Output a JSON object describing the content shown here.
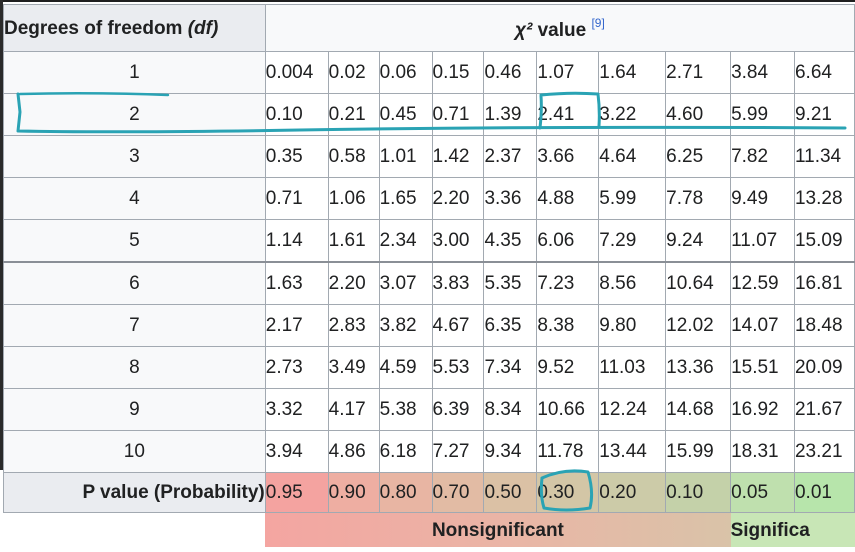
{
  "header": {
    "df_label": "Degrees of freedom",
    "df_abbrev": "(df)",
    "chi_symbol": "χ²",
    "chi_label": "value",
    "chi_ref": "[9]"
  },
  "rows": [
    {
      "df": "1",
      "values": [
        "0.004",
        "0.02",
        "0.06",
        "0.15",
        "0.46",
        "1.07",
        "1.64",
        "2.71",
        "3.84",
        "6.64"
      ]
    },
    {
      "df": "2",
      "values": [
        "0.10",
        "0.21",
        "0.45",
        "0.71",
        "1.39",
        "2.41",
        "3.22",
        "4.60",
        "5.99",
        "9.21"
      ]
    },
    {
      "df": "3",
      "values": [
        "0.35",
        "0.58",
        "1.01",
        "1.42",
        "2.37",
        "3.66",
        "4.64",
        "6.25",
        "7.82",
        "11.34"
      ]
    },
    {
      "df": "4",
      "values": [
        "0.71",
        "1.06",
        "1.65",
        "2.20",
        "3.36",
        "4.88",
        "5.99",
        "7.78",
        "9.49",
        "13.28"
      ]
    },
    {
      "df": "5",
      "values": [
        "1.14",
        "1.61",
        "2.34",
        "3.00",
        "4.35",
        "6.06",
        "7.29",
        "9.24",
        "11.07",
        "15.09"
      ]
    },
    {
      "df": "6",
      "values": [
        "1.63",
        "2.20",
        "3.07",
        "3.83",
        "5.35",
        "7.23",
        "8.56",
        "10.64",
        "12.59",
        "16.81"
      ]
    },
    {
      "df": "7",
      "values": [
        "2.17",
        "2.83",
        "3.82",
        "4.67",
        "6.35",
        "8.38",
        "9.80",
        "12.02",
        "14.07",
        "18.48"
      ]
    },
    {
      "df": "8",
      "values": [
        "2.73",
        "3.49",
        "4.59",
        "5.53",
        "7.34",
        "9.52",
        "11.03",
        "13.36",
        "15.51",
        "20.09"
      ]
    },
    {
      "df": "9",
      "values": [
        "3.32",
        "4.17",
        "5.38",
        "6.39",
        "8.34",
        "10.66",
        "12.24",
        "14.68",
        "16.92",
        "21.67"
      ]
    },
    {
      "df": "10",
      "values": [
        "3.94",
        "4.86",
        "6.18",
        "7.27",
        "9.34",
        "11.78",
        "13.44",
        "15.99",
        "18.31",
        "23.21"
      ]
    }
  ],
  "p_values": {
    "label": "P value (Probability)",
    "values": [
      "0.95",
      "0.90",
      "0.80",
      "0.70",
      "0.50",
      "0.30",
      "0.20",
      "0.10",
      "0.05",
      "0.01"
    ],
    "colors": [
      "#f4a3a0",
      "#eeaea2",
      "#e8b5a3",
      "#e2bba4",
      "#dbc1a5",
      "#d3c6a6",
      "#cccba8",
      "#c4d1a9",
      "#bfe0ae",
      "#b7e5ab"
    ]
  },
  "significance": {
    "nonsignificant": "Nonsignificant",
    "significant": "Significa"
  },
  "annotations": {
    "pen_color": "#2aa3b4",
    "highlighted_row_df": "2",
    "highlighted_value": "2.41",
    "highlighted_p": "0.30"
  }
}
